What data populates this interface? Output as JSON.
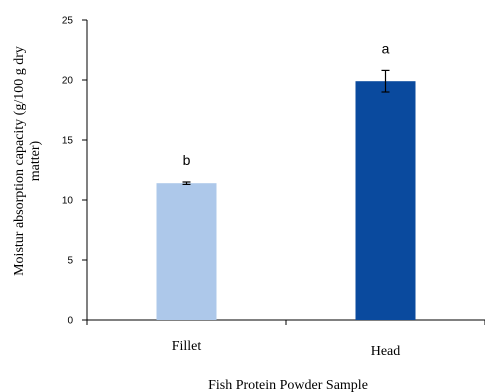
{
  "chart_data": {
    "type": "bar",
    "title": "",
    "categories": [
      "Fillet",
      "Head"
    ],
    "values": [
      11.4,
      19.9
    ],
    "errors": [
      0.1,
      0.9
    ],
    "significance_letters": [
      "b",
      "a"
    ],
    "colors": [
      "#adc8ea",
      "#0a4a9e"
    ],
    "xlabel": "Fish Protein Powder Sample",
    "ylabel_lines": [
      "Moistur absorption capacity (g/100 g dry",
      "matter)"
    ],
    "ylim": [
      0,
      25
    ],
    "yticks": [
      0,
      5,
      10,
      15,
      20,
      25
    ],
    "grid": false,
    "legend": "none"
  }
}
